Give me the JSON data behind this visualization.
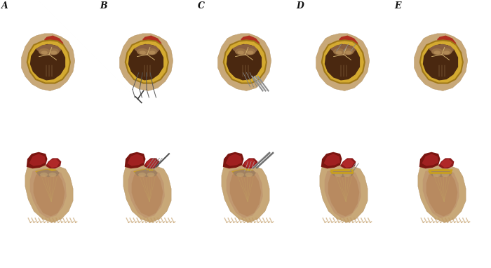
{
  "background_color": "#ffffff",
  "labels": [
    "A",
    "B",
    "C",
    "D",
    "E"
  ],
  "label_color": "#111111",
  "label_fontsize": 9,
  "fig_width": 7.0,
  "fig_height": 3.82,
  "dpi": 100,
  "colors": {
    "body_tan": "#c8a878",
    "body_light": "#d4b896",
    "gold_border": "#c8a020",
    "red_tissue": "#b03020",
    "red_dark": "#8b2015",
    "inner_dark": "#4a2810",
    "valve_tan": "#a07850",
    "valve_light": "#c8a070",
    "leaflet1": "#6a4030",
    "leaflet2": "#3a2015",
    "leaflet3": "#8a6040",
    "suture_gray": "#707070",
    "tool_gray": "#888888",
    "chordae": "#b89060",
    "fringe": "#c09060",
    "pink_tissue": "#d4a888",
    "cavity_brown": "#a07850"
  }
}
